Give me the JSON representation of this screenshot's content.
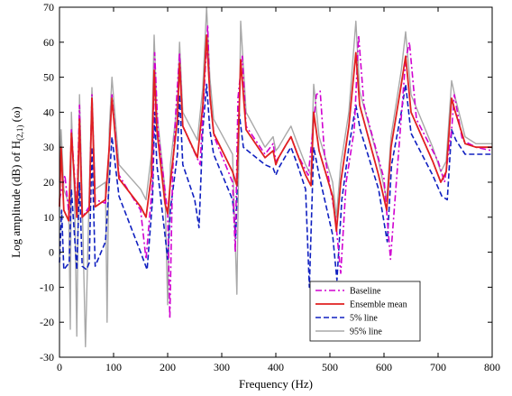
{
  "chart_data": {
    "type": "line",
    "xlabel": "Frequency (Hz)",
    "ylabel": {
      "prefix": "Log amplitude (dB) of H",
      "subscript": "(2,1)",
      "suffix": " (ω)"
    },
    "xlim": [
      0,
      800
    ],
    "ylim": [
      -30,
      70
    ],
    "xticks": [
      0,
      100,
      200,
      300,
      400,
      500,
      600,
      700,
      800
    ],
    "yticks": [
      -30,
      -20,
      -10,
      0,
      10,
      20,
      30,
      40,
      50,
      60,
      70
    ],
    "grid": false,
    "legend_position": "bottom-right",
    "series": [
      {
        "name": "Baseline",
        "style": "dash-dot",
        "color": "#d000d0",
        "x": [
          0,
          10,
          18,
          22,
          32,
          37,
          42,
          55,
          60,
          66,
          85,
          92,
          97,
          110,
          150,
          160,
          172,
          176,
          182,
          200,
          204,
          209,
          215,
          222,
          228,
          260,
          266,
          274,
          278,
          286,
          320,
          325,
          330,
          338,
          345,
          380,
          395,
          400,
          405,
          420,
          428,
          440,
          460,
          475,
          482,
          490,
          510,
          520,
          530,
          545,
          553,
          563,
          600,
          612,
          640,
          647,
          660,
          700,
          712,
          725,
          730,
          745,
          770,
          800
        ],
        "y": [
          15,
          22,
          10,
          35,
          12,
          42,
          10,
          13,
          45,
          15,
          14,
          30,
          45,
          22,
          12,
          -2,
          20,
          57,
          35,
          11,
          -19,
          22,
          40,
          57,
          36,
          25,
          42,
          65,
          44,
          33,
          20,
          0,
          44,
          56,
          36,
          28,
          31,
          26,
          27,
          31,
          33,
          28,
          22,
          45,
          46,
          28,
          10,
          -6,
          20,
          35,
          62,
          42,
          21,
          -2,
          55,
          60,
          38,
          26,
          20,
          35,
          45,
          32,
          30,
          29
        ]
      },
      {
        "name": "Ensemble mean",
        "style": "solid",
        "color": "#e02020",
        "x": [
          0,
          3,
          8,
          17,
          22,
          32,
          37,
          42,
          55,
          60,
          66,
          85,
          92,
          97,
          110,
          150,
          160,
          170,
          175,
          180,
          195,
          200,
          205,
          218,
          222,
          228,
          255,
          265,
          272,
          278,
          285,
          320,
          328,
          335,
          345,
          380,
          395,
          400,
          405,
          420,
          428,
          440,
          455,
          465,
          470,
          480,
          505,
          512,
          520,
          535,
          548,
          555,
          590,
          605,
          613,
          632,
          640,
          650,
          690,
          705,
          715,
          725,
          732,
          750,
          770,
          800
        ],
        "y": [
          13,
          30,
          12,
          9,
          34,
          10,
          38,
          10,
          12,
          44,
          13,
          15,
          30,
          44,
          21,
          13,
          10,
          22,
          52,
          35,
          14,
          11,
          20,
          38,
          54,
          36,
          27,
          42,
          62,
          45,
          34,
          23,
          19,
          55,
          35,
          27,
          29,
          25,
          27,
          31,
          33,
          28,
          22,
          19,
          40,
          29,
          16,
          6,
          20,
          36,
          57,
          42,
          22,
          12,
          30,
          48,
          56,
          40,
          26,
          20,
          23,
          44,
          40,
          31,
          30,
          30
        ]
      },
      {
        "name": "5% line",
        "style": "dashed",
        "color": "#1020c0",
        "x": [
          0,
          4,
          8,
          18,
          22,
          32,
          37,
          42,
          50,
          55,
          60,
          66,
          85,
          92,
          97,
          110,
          150,
          162,
          172,
          176,
          180,
          195,
          200,
          205,
          218,
          222,
          228,
          250,
          258,
          265,
          272,
          278,
          285,
          320,
          326,
          332,
          340,
          380,
          395,
          400,
          405,
          420,
          428,
          440,
          455,
          462,
          470,
          480,
          505,
          513,
          522,
          535,
          548,
          556,
          590,
          606,
          614,
          632,
          640,
          650,
          690,
          707,
          717,
          725,
          733,
          750,
          770,
          800
        ],
        "y": [
          -3,
          12,
          -5,
          -3,
          18,
          -5,
          20,
          -4,
          -5,
          -3,
          30,
          -4,
          3,
          20,
          33,
          16,
          0,
          -5,
          15,
          40,
          25,
          5,
          -2,
          12,
          28,
          45,
          25,
          15,
          7,
          35,
          48,
          35,
          28,
          15,
          4,
          40,
          30,
          25,
          24,
          22,
          24,
          28,
          30,
          25,
          18,
          -10,
          30,
          22,
          5,
          -8,
          15,
          30,
          42,
          35,
          18,
          3,
          25,
          40,
          48,
          34,
          22,
          16,
          15,
          35,
          32,
          28,
          28,
          28
        ]
      },
      {
        "name": "95% line",
        "style": "solid",
        "color": "#a8a8a8",
        "x": [
          0,
          3,
          8,
          17,
          20,
          22,
          28,
          32,
          37,
          42,
          48,
          55,
          60,
          66,
          85,
          88,
          92,
          97,
          110,
          150,
          160,
          170,
          175,
          180,
          195,
          200,
          205,
          218,
          222,
          228,
          255,
          265,
          272,
          278,
          285,
          320,
          328,
          335,
          345,
          380,
          395,
          400,
          405,
          420,
          428,
          440,
          455,
          465,
          470,
          480,
          505,
          512,
          520,
          535,
          548,
          555,
          590,
          605,
          613,
          632,
          640,
          650,
          690,
          705,
          715,
          725,
          732,
          750,
          770,
          800
        ],
        "y": [
          20,
          35,
          18,
          14,
          -22,
          40,
          15,
          -24,
          45,
          15,
          -27,
          17,
          47,
          18,
          20,
          -20,
          35,
          50,
          25,
          18,
          15,
          28,
          62,
          40,
          18,
          -15,
          25,
          43,
          60,
          40,
          32,
          47,
          70,
          50,
          38,
          28,
          -12,
          66,
          40,
          30,
          33,
          29,
          30,
          34,
          36,
          31,
          25,
          22,
          48,
          33,
          20,
          10,
          25,
          40,
          66,
          46,
          26,
          15,
          33,
          52,
          63,
          45,
          30,
          23,
          26,
          49,
          44,
          33,
          31,
          31
        ]
      }
    ]
  }
}
